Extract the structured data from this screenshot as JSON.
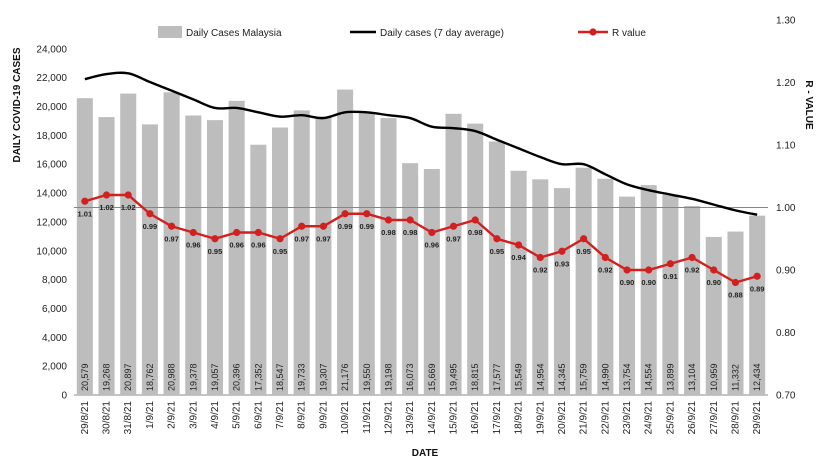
{
  "chart_data": {
    "type": "bar",
    "xlabel": "DATE",
    "ylabel": "DAILY COVID-19 CASES",
    "y2label": "R - VALUE",
    "ylim": [
      0,
      26000
    ],
    "y2lim": [
      0.7,
      1.3
    ],
    "yticks": [
      "0",
      "2,000",
      "4,000",
      "6,000",
      "8,000",
      "10,000",
      "12,000",
      "14,000",
      "16,000",
      "18,000",
      "20,000",
      "22,000",
      "24,000"
    ],
    "y2ticks": [
      "0.70",
      "0.80",
      "0.90",
      "1.00",
      "1.10",
      "1.20",
      "1.30"
    ],
    "grid": false,
    "legend_position": "top",
    "reference_line": {
      "axis": "y2",
      "value": 1.0,
      "color": "#e06060"
    },
    "categories": [
      "29/8/21",
      "30/8/21",
      "31/8/21",
      "1/9/21",
      "2/9/21",
      "3/9/21",
      "4/9/21",
      "5/9/21",
      "6/9/21",
      "7/9/21",
      "8/9/21",
      "9/9/21",
      "10/9/21",
      "11/9/21",
      "12/9/21",
      "13/9/21",
      "14/9/21",
      "15/9/21",
      "16/9/21",
      "17/9/21",
      "18/9/21",
      "19/9/21",
      "20/9/21",
      "21/9/21",
      "22/9/21",
      "23/9/21",
      "24/9/21",
      "25/9/21",
      "26/9/21",
      "27/9/21",
      "28/9/21",
      "29/9/21"
    ],
    "series": [
      {
        "name": "Daily Cases Malaysia",
        "type": "bar",
        "axis": "y",
        "color": "#bdbdbd",
        "values": [
          20579,
          19268,
          20897,
          18762,
          20988,
          19378,
          19057,
          20396,
          17352,
          18547,
          19733,
          19307,
          21176,
          19550,
          19198,
          16073,
          15669,
          19495,
          18815,
          17577,
          15549,
          14954,
          14345,
          15759,
          14990,
          13754,
          14554,
          13899,
          13104,
          10959,
          11332,
          12434
        ],
        "labels": [
          "20,579",
          "19,268",
          "20,897",
          "18,762",
          "20,988",
          "19,378",
          "19,057",
          "20,396",
          "17,352",
          "18,547",
          "19,733",
          "19,307",
          "21,176",
          "19,550",
          "19,198",
          "16,073",
          "15,669",
          "19,495",
          "18,815",
          "17,577",
          "15,549",
          "14,954",
          "14,345",
          "15,759",
          "14,990",
          "13,754",
          "14,554",
          "13,899",
          "13,104",
          "10,959",
          "11,332",
          "12,434"
        ]
      },
      {
        "name": "Daily cases (7 day average)",
        "type": "line",
        "axis": "y",
        "color": "#000000",
        "values": [
          21900,
          22250,
          22300,
          21700,
          21100,
          20500,
          19900,
          19900,
          19600,
          19300,
          19400,
          19200,
          19600,
          19600,
          19400,
          19200,
          18600,
          18500,
          18300,
          17700,
          17100,
          16500,
          16000,
          16000,
          15300,
          14600,
          14200,
          13900,
          13600,
          13200,
          12800,
          12500
        ]
      },
      {
        "name": "R value",
        "type": "line",
        "axis": "y2",
        "color": "#d21f1f",
        "values": [
          1.01,
          1.02,
          1.02,
          0.99,
          0.97,
          0.96,
          0.95,
          0.96,
          0.96,
          0.95,
          0.97,
          0.97,
          0.99,
          0.99,
          0.98,
          0.98,
          0.96,
          0.97,
          0.98,
          0.95,
          0.94,
          0.92,
          0.93,
          0.95,
          0.92,
          0.9,
          0.9,
          0.91,
          0.92,
          0.9,
          0.88,
          0.89
        ],
        "labels": [
          "1.01",
          "1.02",
          "1.02",
          "0.99",
          "0.97",
          "0.96",
          "0.95",
          "0.96",
          "0.96",
          "0.95",
          "0.97",
          "0.97",
          "0.99",
          "0.99",
          "0.98",
          "0.98",
          "0.96",
          "0.97",
          "0.98",
          "0.95",
          "0.94",
          "0.92",
          "0.93",
          "0.95",
          "0.92",
          "0.90",
          "0.90",
          "0.91",
          "0.92",
          "0.90",
          "0.88",
          "0.89"
        ]
      }
    ]
  }
}
